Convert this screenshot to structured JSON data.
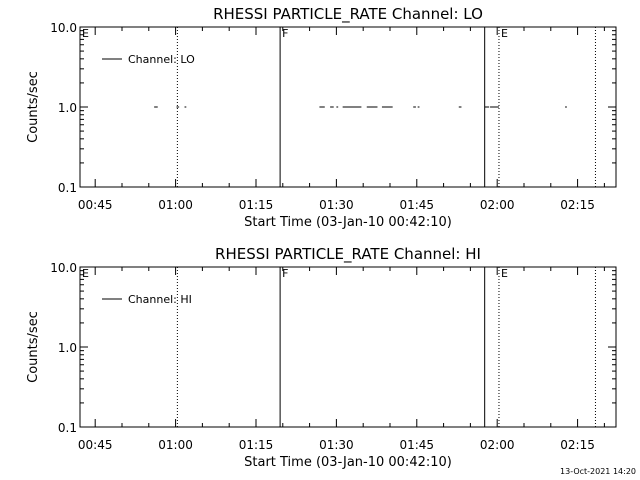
{
  "timestamp": "13-Oct-2021 14:20",
  "chart_data": [
    {
      "type": "line",
      "title": "RHESSI PARTICLE_RATE Channel: LO",
      "xlabel": "Start Time (03-Jan-10 00:42:10)",
      "ylabel": "Counts/sec",
      "yscale": "log",
      "ylim": [
        0.1,
        10.0
      ],
      "xlim": [
        "00:42:10",
        "02:22:10"
      ],
      "y_ticks": [
        "0.1",
        "1.0",
        "10.0"
      ],
      "x_ticks": [
        "00:45",
        "01:00",
        "01:15",
        "01:30",
        "01:45",
        "02:00",
        "02:15"
      ],
      "legend": {
        "label": "Channel: LO",
        "position": "top-left"
      },
      "flags": [
        {
          "label": "E",
          "time": "00:42:10",
          "style": "dotted"
        },
        {
          "label": "F",
          "time": "01:19:30",
          "style": "solid"
        },
        {
          "label": "",
          "time": "01:57:40",
          "style": "solid"
        },
        {
          "label": "E",
          "time": "02:00:20",
          "style": "dotted"
        },
        {
          "label": "",
          "time": "01:00:20",
          "style": "dotted"
        },
        {
          "label": "",
          "time": "02:18:20",
          "style": "dotted"
        }
      ],
      "series": [
        {
          "name": "Channel: LO",
          "segments": [
            {
              "x": [
                "00:56:00",
                "00:56:40"
              ],
              "y": 1.0
            },
            {
              "x": [
                "01:00:10",
                "01:00:40"
              ],
              "y": 1.0
            },
            {
              "x": [
                "01:01:40",
                "01:02:00"
              ],
              "y": 1.0
            },
            {
              "x": [
                "01:26:50",
                "01:27:50"
              ],
              "y": 1.0
            },
            {
              "x": [
                "01:28:50",
                "01:29:30"
              ],
              "y": 1.0
            },
            {
              "x": [
                "01:30:00",
                "01:30:20"
              ],
              "y": 1.0
            },
            {
              "x": [
                "01:31:10",
                "01:34:40"
              ],
              "y": 1.0
            },
            {
              "x": [
                "01:35:40",
                "01:37:40"
              ],
              "y": 1.0
            },
            {
              "x": [
                "01:38:30",
                "01:40:30"
              ],
              "y": 1.0
            },
            {
              "x": [
                "01:44:20",
                "01:44:50"
              ],
              "y": 1.0
            },
            {
              "x": [
                "01:45:10",
                "01:45:30"
              ],
              "y": 1.0
            },
            {
              "x": [
                "01:52:50",
                "01:53:20"
              ],
              "y": 1.0
            },
            {
              "x": [
                "01:57:40",
                "01:58:30"
              ],
              "y": 1.0
            },
            {
              "x": [
                "01:58:40",
                "02:00:20"
              ],
              "y": 1.0
            },
            {
              "x": [
                "02:12:40",
                "02:13:00"
              ],
              "y": 1.0
            }
          ]
        }
      ]
    },
    {
      "type": "line",
      "title": "RHESSI PARTICLE_RATE Channel: HI",
      "xlabel": "Start Time (03-Jan-10 00:42:10)",
      "ylabel": "Counts/sec",
      "yscale": "log",
      "ylim": [
        0.1,
        10.0
      ],
      "xlim": [
        "00:42:10",
        "02:22:10"
      ],
      "y_ticks": [
        "0.1",
        "1.0",
        "10.0"
      ],
      "x_ticks": [
        "00:45",
        "01:00",
        "01:15",
        "01:30",
        "01:45",
        "02:00",
        "02:15"
      ],
      "legend": {
        "label": "Channel: HI",
        "position": "top-left"
      },
      "flags": [
        {
          "label": "E",
          "time": "00:42:10",
          "style": "dotted"
        },
        {
          "label": "F",
          "time": "01:19:30",
          "style": "solid"
        },
        {
          "label": "",
          "time": "01:57:40",
          "style": "solid"
        },
        {
          "label": "E",
          "time": "02:00:20",
          "style": "dotted"
        },
        {
          "label": "",
          "time": "01:00:20",
          "style": "dotted"
        },
        {
          "label": "",
          "time": "02:18:20",
          "style": "dotted"
        }
      ],
      "series": [
        {
          "name": "Channel: HI",
          "segments": []
        }
      ]
    }
  ]
}
